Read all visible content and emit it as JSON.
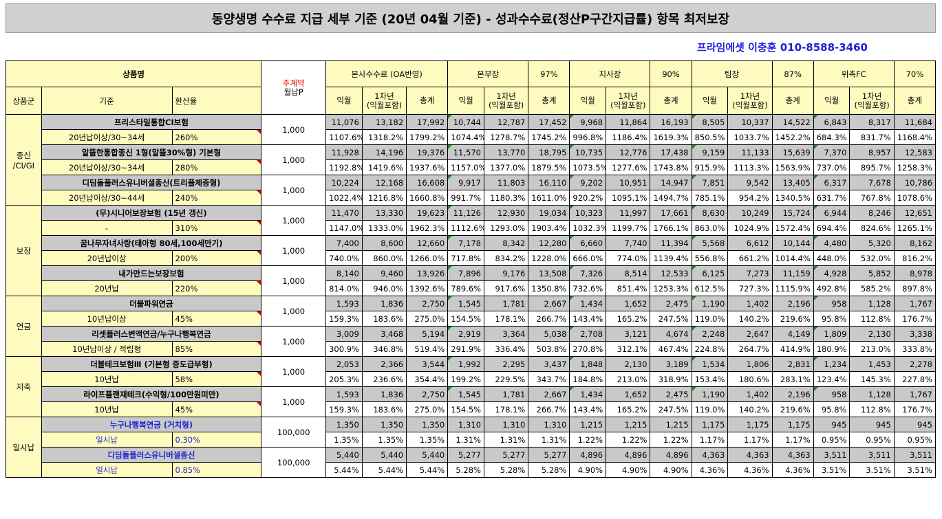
{
  "title": "동양생명 수수료 지급 세부 기준 (20년 04월 기준) - 성과수수료(정산P구간지급률) 항목 최저보장",
  "contact": "프라임에셋 이충훈 010-8588-3460",
  "header": {
    "product_name": "상품명",
    "main_premium_top": "주계약",
    "main_premium_bottom": "월납P",
    "product_group": "상품군",
    "criteria": "기준",
    "conversion_rate": "환산율",
    "groups": [
      {
        "name": "본사수수료 (OA반영)",
        "pct": ""
      },
      {
        "name": "본부장",
        "pct": "97%"
      },
      {
        "name": "지사장",
        "pct": "90%"
      },
      {
        "name": "팀장",
        "pct": "87%"
      },
      {
        "name": "위촉FC",
        "pct": "70%"
      }
    ],
    "sub_cols": [
      "익월",
      "1차년\n(익월포함)",
      "총계"
    ]
  },
  "sections": [
    {
      "category": "종신\n/CI/GI",
      "products": [
        {
          "name": "프리스타일통합CI보험",
          "criteria": "20년납이상/30~34세",
          "rate": "260%",
          "premium": "1,000",
          "amounts": [
            "11,076",
            "13,182",
            "17,992",
            "10,744",
            "12,787",
            "17,452",
            "9,968",
            "11,864",
            "16,193",
            "8,505",
            "10,337",
            "14,522",
            "6,843",
            "8,317",
            "11,684"
          ],
          "percents": [
            "1107.6%",
            "1318.2%",
            "1799.2%",
            "1074.4%",
            "1278.7%",
            "1745.2%",
            "996.8%",
            "1186.4%",
            "1619.3%",
            "850.5%",
            "1033.7%",
            "1452.2%",
            "684.3%",
            "831.7%",
            "1168.4%"
          ]
        },
        {
          "name": "알뜰한통합종신 1형(알뜰30%형) 기본형",
          "criteria": "20년납이상/30~34세",
          "rate": "280%",
          "premium": "1,000",
          "amounts": [
            "11,928",
            "14,196",
            "19,376",
            "11,570",
            "13,770",
            "18,795",
            "10,735",
            "12,776",
            "17,438",
            "9,159",
            "11,133",
            "15,639",
            "7,370",
            "8,957",
            "12,583"
          ],
          "percents": [
            "1192.8%",
            "1419.6%",
            "1937.6%",
            "1157.0%",
            "1377.0%",
            "1879.5%",
            "1073.5%",
            "1277.6%",
            "1743.8%",
            "915.9%",
            "1113.3%",
            "1563.9%",
            "737.0%",
            "895.7%",
            "1258.3%"
          ]
        },
        {
          "name": "디딤돌플러스유니버셜종신(트리플체증형)",
          "criteria": "20년납이상/30~44세",
          "rate": "240%",
          "premium": "1,000",
          "amounts": [
            "10,224",
            "12,168",
            "16,608",
            "9,917",
            "11,803",
            "16,110",
            "9,202",
            "10,951",
            "14,947",
            "7,851",
            "9,542",
            "13,405",
            "6,317",
            "7,678",
            "10,786"
          ],
          "percents": [
            "1022.4%",
            "1216.8%",
            "1660.8%",
            "991.7%",
            "1180.3%",
            "1611.0%",
            "920.2%",
            "1095.1%",
            "1494.7%",
            "785.1%",
            "954.2%",
            "1340.5%",
            "631.7%",
            "767.8%",
            "1078.6%"
          ]
        }
      ]
    },
    {
      "category": "보장",
      "products": [
        {
          "name": "(무)시니어보장보험 (15년 갱신)",
          "criteria": "-",
          "rate": "310%",
          "premium": "1,000",
          "amounts": [
            "11,470",
            "13,330",
            "19,623",
            "11,126",
            "12,930",
            "19,034",
            "10,323",
            "11,997",
            "17,661",
            "8,630",
            "10,249",
            "15,724",
            "6,944",
            "8,246",
            "12,651"
          ],
          "percents": [
            "1147.0%",
            "1333.0%",
            "1962.3%",
            "1112.6%",
            "1293.0%",
            "1903.4%",
            "1032.3%",
            "1199.7%",
            "1766.1%",
            "863.0%",
            "1024.9%",
            "1572.4%",
            "694.4%",
            "824.6%",
            "1265.1%"
          ]
        },
        {
          "name": "꿈나무자녀사랑(태아형 80세,100세만기)",
          "criteria": "20년납이상",
          "rate": "200%",
          "premium": "1,000",
          "amounts": [
            "7,400",
            "8,600",
            "12,660",
            "7,178",
            "8,342",
            "12,280",
            "6,660",
            "7,740",
            "11,394",
            "5,568",
            "6,612",
            "10,144",
            "4,480",
            "5,320",
            "8,162"
          ],
          "percents": [
            "740.0%",
            "860.0%",
            "1266.0%",
            "717.8%",
            "834.2%",
            "1228.0%",
            "666.0%",
            "774.0%",
            "1139.4%",
            "556.8%",
            "661.2%",
            "1014.4%",
            "448.0%",
            "532.0%",
            "816.2%"
          ]
        },
        {
          "name": "내가만드는보장보험",
          "criteria": "20년납",
          "rate": "220%",
          "premium": "1,000",
          "amounts": [
            "8,140",
            "9,460",
            "13,926",
            "7,896",
            "9,176",
            "13,508",
            "7,326",
            "8,514",
            "12,533",
            "6,125",
            "7,273",
            "11,159",
            "4,928",
            "5,852",
            "8,978"
          ],
          "percents": [
            "814.0%",
            "946.0%",
            "1392.6%",
            "789.6%",
            "917.6%",
            "1350.8%",
            "732.6%",
            "851.4%",
            "1253.3%",
            "612.5%",
            "727.3%",
            "1115.9%",
            "492.8%",
            "585.2%",
            "897.8%"
          ]
        }
      ]
    },
    {
      "category": "연금",
      "products": [
        {
          "name": "더블파워연금",
          "criteria": "10년납이상",
          "rate": "45%",
          "premium": "1,000",
          "amounts": [
            "1,593",
            "1,836",
            "2,750",
            "1,545",
            "1,781",
            "2,667",
            "1,434",
            "1,652",
            "2,475",
            "1,190",
            "1,402",
            "2,196",
            "958",
            "1,128",
            "1,767"
          ],
          "percents": [
            "159.3%",
            "183.6%",
            "275.0%",
            "154.5%",
            "178.1%",
            "266.7%",
            "143.4%",
            "165.2%",
            "247.5%",
            "119.0%",
            "140.2%",
            "219.6%",
            "95.8%",
            "112.8%",
            "176.7%"
          ]
        },
        {
          "name": "리셋플러스변액연금/누구나행복연금",
          "criteria": "10년납이상 / 적립형",
          "rate": "85%",
          "premium": "1,000",
          "amounts": [
            "3,009",
            "3,468",
            "5,194",
            "2,919",
            "3,364",
            "5,038",
            "2,708",
            "3,121",
            "4,674",
            "2,248",
            "2,647",
            "4,149",
            "1,809",
            "2,130",
            "3,338"
          ],
          "percents": [
            "300.9%",
            "346.8%",
            "519.4%",
            "291.9%",
            "336.4%",
            "503.8%",
            "270.8%",
            "312.1%",
            "467.4%",
            "224.8%",
            "264.7%",
            "414.9%",
            "180.9%",
            "213.0%",
            "333.8%"
          ]
        }
      ]
    },
    {
      "category": "저축",
      "products": [
        {
          "name": "더블테크보험Ⅲ (기본형 중도급부형)",
          "criteria": "10년납",
          "rate": "58%",
          "premium": "1,000",
          "amounts": [
            "2,053",
            "2,366",
            "3,544",
            "1,992",
            "2,295",
            "3,437",
            "1,848",
            "2,130",
            "3,189",
            "1,534",
            "1,806",
            "2,831",
            "1,234",
            "1,453",
            "2,278"
          ],
          "percents": [
            "205.3%",
            "236.6%",
            "354.4%",
            "199.2%",
            "229.5%",
            "343.7%",
            "184.8%",
            "213.0%",
            "318.9%",
            "153.4%",
            "180.6%",
            "283.1%",
            "123.4%",
            "145.3%",
            "227.8%"
          ]
        },
        {
          "name": "라이프플랜재테크(수익형/100만원미만)",
          "criteria": "10년납",
          "rate": "45%",
          "premium": "1,000",
          "amounts": [
            "1,593",
            "1,836",
            "2,750",
            "1,545",
            "1,781",
            "2,667",
            "1,434",
            "1,652",
            "2,475",
            "1,190",
            "1,402",
            "2,196",
            "958",
            "1,128",
            "1,767"
          ],
          "percents": [
            "159.3%",
            "183.6%",
            "275.0%",
            "154.5%",
            "178.1%",
            "266.7%",
            "143.4%",
            "165.2%",
            "247.5%",
            "119.0%",
            "140.2%",
            "219.6%",
            "95.8%",
            "112.8%",
            "176.7%"
          ]
        }
      ]
    },
    {
      "category": "일시납",
      "products": [
        {
          "name": "누구나행복연금 (거치형)",
          "criteria": "일시납",
          "rate": "0.30%",
          "premium": "100,000",
          "amounts": [
            "1,350",
            "1,350",
            "1,350",
            "1,310",
            "1,310",
            "1,310",
            "1,215",
            "1,215",
            "1,215",
            "1,175",
            "1,175",
            "1,175",
            "945",
            "945",
            "945"
          ],
          "percents": [
            "1.35%",
            "1.35%",
            "1.35%",
            "1.31%",
            "1.31%",
            "1.31%",
            "1.22%",
            "1.22%",
            "1.22%",
            "1.17%",
            "1.17%",
            "1.17%",
            "0.95%",
            "0.95%",
            "0.95%"
          ]
        },
        {
          "name": "디딤돌플러스유니버셜종신",
          "criteria": "일시납",
          "rate": "0.85%",
          "premium": "100,000",
          "amounts": [
            "5,440",
            "5,440",
            "5,440",
            "5,277",
            "5,277",
            "5,277",
            "4,896",
            "4,896",
            "4,896",
            "4,363",
            "4,363",
            "4,363",
            "3,511",
            "3,511",
            "3,511"
          ],
          "percents": [
            "5.44%",
            "5.44%",
            "5.44%",
            "5.28%",
            "5.28%",
            "5.28%",
            "4.90%",
            "4.90%",
            "4.90%",
            "4.36%",
            "4.36%",
            "4.36%",
            "3.51%",
            "3.51%",
            "3.51%"
          ]
        }
      ]
    }
  ]
}
